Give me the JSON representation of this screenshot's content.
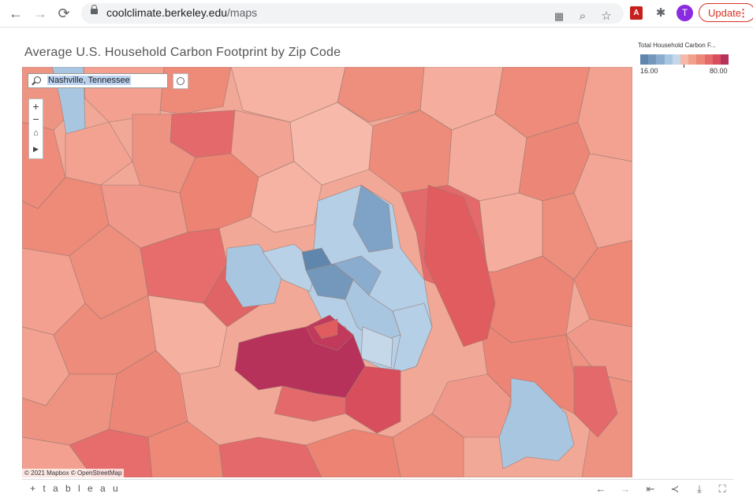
{
  "browser": {
    "url_host": "coolclimate.berkeley.edu",
    "url_path": "/maps",
    "avatar_letter": "T",
    "update_label": "Update"
  },
  "page": {
    "title": "Average U.S. Household Carbon Footprint by Zip Code"
  },
  "map": {
    "search_value": "Nashville, Tennessee",
    "attribution": "© 2021 Mapbox © OpenStreetMap",
    "zoom_in": "+",
    "zoom_out": "−"
  },
  "legend": {
    "title": "Total Household Carbon F...",
    "min_label": "16.00",
    "max_label": "80.00",
    "min": 16.0,
    "max": 80.0,
    "colors": [
      "#5f87ad",
      "#7498bb",
      "#8aadcf",
      "#a9c6e1",
      "#c4d8ea",
      "#f6b9a9",
      "#f2a08e",
      "#ec8777",
      "#e4696a",
      "#d94e5d",
      "#b7325a"
    ]
  },
  "footer": {
    "logo": "+ t a b l e a u"
  }
}
